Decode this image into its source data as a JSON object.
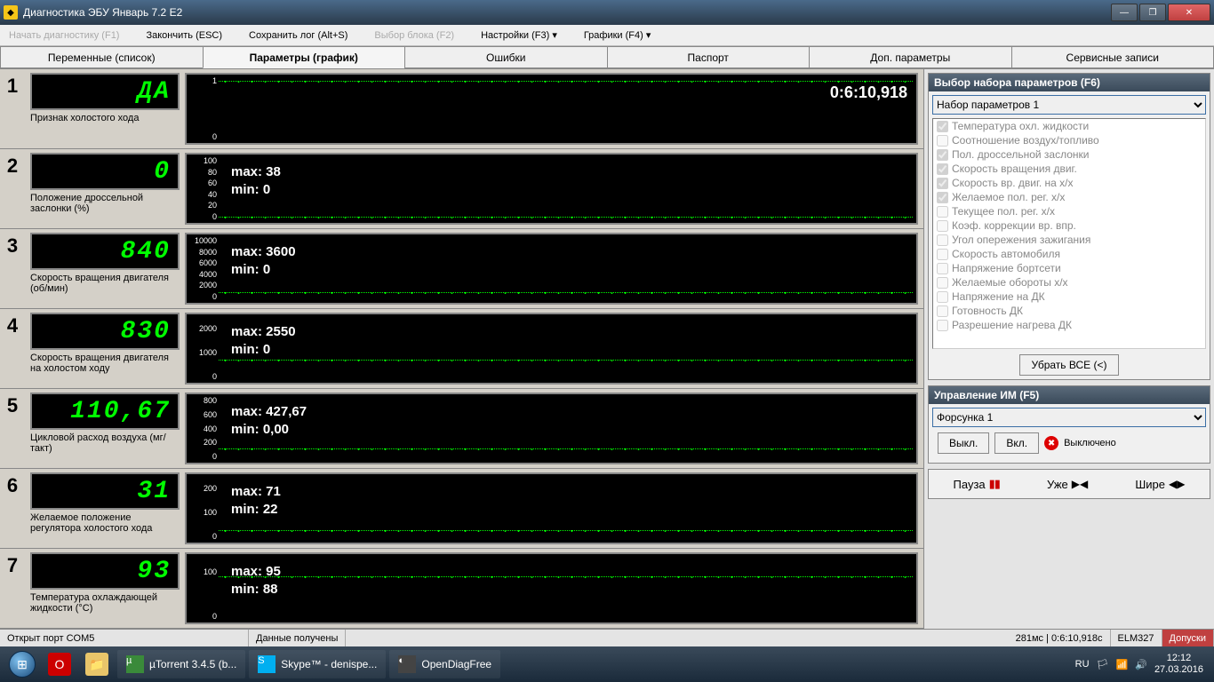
{
  "window": {
    "title": "Диагностика ЭБУ Январь 7.2 E2"
  },
  "toolbar": {
    "start": "Начать диагностику (F1)",
    "stop": "Закончить (ESC)",
    "savelog": "Сохранить лог (Alt+S)",
    "selectblock": "Выбор блока (F2)",
    "settings": "Настройки (F3) ▾",
    "charts": "Графики (F4) ▾"
  },
  "tabs": {
    "t1": "Переменные (список)",
    "t2": "Параметры (график)",
    "t3": "Ошибки",
    "t4": "Паспорт",
    "t5": "Доп. параметры",
    "t6": "Сервисные записи"
  },
  "timestamp": "0:6:10,918",
  "params": [
    {
      "num": "1",
      "value": "ДА",
      "label": "Признак холостого хода",
      "ylabels": [
        "1",
        "0"
      ],
      "linepct": 5,
      "max": null,
      "min": null
    },
    {
      "num": "2",
      "value": "0",
      "label": "Положение дроссельной заслонки (%)",
      "ylabels": [
        "100",
        "80",
        "60",
        "40",
        "20",
        "0"
      ],
      "linepct": 95,
      "max": "max: 38",
      "min": "min: 0"
    },
    {
      "num": "3",
      "value": "840",
      "label": "Скорость вращения двигателя (об/мин)",
      "ylabels": [
        "10000",
        "8000",
        "6000",
        "4000",
        "2000",
        "0"
      ],
      "linepct": 88,
      "max": "max: 3600",
      "min": "min: 0"
    },
    {
      "num": "4",
      "value": "830",
      "label": "Скорость вращения двигателя на холостом ходу",
      "ylabels": [
        "",
        "2000",
        "",
        "1000",
        "",
        "0"
      ],
      "linepct": 68,
      "max": "max: 2550",
      "min": "min: 0"
    },
    {
      "num": "5",
      "value": "110,67",
      "label": "Цикловой расход воздуха (мг/такт)",
      "ylabels": [
        "800",
        "600",
        "400",
        "200",
        "0"
      ],
      "linepct": 82,
      "max": "max: 427,67",
      "min": "min: 0,00"
    },
    {
      "num": "6",
      "value": "31",
      "label": "Желаемое положение регулятора холостого хода",
      "ylabels": [
        "",
        "200",
        "",
        "100",
        "",
        "0"
      ],
      "linepct": 85,
      "max": "max: 71",
      "min": "min: 22"
    },
    {
      "num": "7",
      "value": "93",
      "label": "Температура охлаждающей жидкости (°C)",
      "ylabels": [
        "",
        "100",
        "",
        "",
        "0"
      ],
      "linepct": 30,
      "max": "max: 95",
      "min": "min: 88"
    }
  ],
  "right": {
    "panel1_title": "Выбор набора параметров (F6)",
    "paramset": "Набор параметров 1",
    "checklist": [
      {
        "c": true,
        "t": "Температура охл. жидкости"
      },
      {
        "c": false,
        "t": "Соотношение воздух/топливо"
      },
      {
        "c": true,
        "t": "Пол. дроссельной заслонки"
      },
      {
        "c": true,
        "t": "Скорость вращения двиг."
      },
      {
        "c": true,
        "t": "Скорость вр. двиг. на х/х"
      },
      {
        "c": true,
        "t": "Желаемое пол. рег. х/х"
      },
      {
        "c": false,
        "t": "Текущее пол. рег. х/х"
      },
      {
        "c": false,
        "t": "Коэф. коррекции вр. впр."
      },
      {
        "c": false,
        "t": "Угол опережения зажигания"
      },
      {
        "c": false,
        "t": "Скорость автомобиля"
      },
      {
        "c": false,
        "t": "Напряжение бортсети"
      },
      {
        "c": false,
        "t": "Желаемые обороты х/х"
      },
      {
        "c": false,
        "t": "Напряжение на ДК"
      },
      {
        "c": false,
        "t": "Готовность ДК"
      },
      {
        "c": false,
        "t": "Разрешение нагрева ДК"
      }
    ],
    "clear_all": "Убрать ВСЕ (<)",
    "panel2_title": "Управление ИМ (F5)",
    "im_select": "Форсунка 1",
    "btn_off": "Выкл.",
    "btn_on": "Вкл.",
    "state": "Выключено",
    "pause": "Пауза",
    "narrow": "Уже",
    "wide": "Шире"
  },
  "status": {
    "port": "Открыт порт COM5",
    "data": "Данные получены",
    "timing": "281мс | 0:6:10,918с",
    "adapter": "ELM327",
    "alert": "Допуски"
  },
  "taskbar": {
    "t1": "µTorrent 3.4.5  (b...",
    "t2": "Skype™ - denispe...",
    "t3": "OpenDiagFree",
    "lang": "RU",
    "time": "12:12",
    "date": "27.03.2016"
  }
}
